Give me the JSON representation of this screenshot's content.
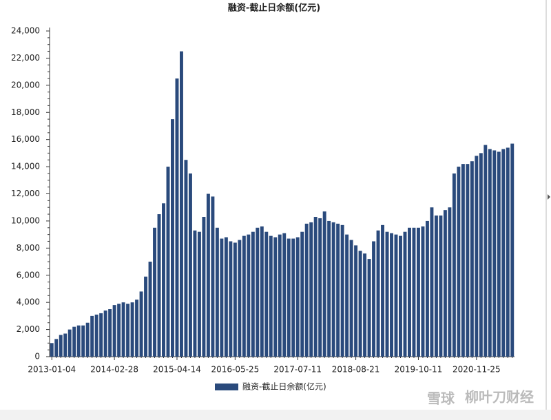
{
  "chart_data": {
    "type": "bar",
    "title": "融资-截止日余额(亿元)",
    "categories": [
      "2013-01-04",
      null,
      null,
      null,
      null,
      null,
      null,
      null,
      null,
      null,
      null,
      null,
      null,
      null,
      "2014-02-28",
      null,
      null,
      null,
      null,
      null,
      null,
      null,
      null,
      null,
      null,
      null,
      null,
      null,
      "2015-04-14",
      null,
      null,
      null,
      null,
      null,
      null,
      null,
      null,
      null,
      null,
      null,
      null,
      "2016-05-25",
      null,
      null,
      null,
      null,
      null,
      null,
      null,
      null,
      null,
      null,
      null,
      null,
      null,
      "2017-07-11",
      null,
      null,
      null,
      null,
      null,
      null,
      null,
      null,
      null,
      null,
      null,
      null,
      "2018-08-21",
      null,
      null,
      null,
      null,
      null,
      null,
      null,
      null,
      null,
      null,
      null,
      null,
      null,
      "2019-10-11",
      null,
      null,
      null,
      null,
      null,
      null,
      null,
      null,
      null,
      null,
      null,
      null,
      "2020-11-25",
      null,
      null,
      null,
      null,
      null,
      null,
      null,
      null
    ],
    "series": [
      {
        "name": "融资-截止日余额(亿元)",
        "color": "#2a4a7c",
        "values": [
          1000,
          1300,
          1600,
          1700,
          2000,
          2200,
          2300,
          2300,
          2500,
          3000,
          3100,
          3200,
          3400,
          3500,
          3800,
          3900,
          4000,
          3900,
          4000,
          4200,
          4800,
          5900,
          7000,
          9500,
          10500,
          11300,
          14000,
          17500,
          20500,
          22500,
          14500,
          13500,
          9300,
          9200,
          10300,
          12000,
          11800,
          9500,
          8700,
          8800,
          8500,
          8400,
          8600,
          8900,
          9000,
          9200,
          9500,
          9600,
          9200,
          8900,
          8800,
          9000,
          9100,
          8700,
          8700,
          8800,
          9200,
          9800,
          9900,
          10300,
          10200,
          10700,
          10000,
          9900,
          9800,
          9700,
          9000,
          8600,
          8200,
          7800,
          7600,
          7200,
          8500,
          9300,
          9700,
          9200,
          9100,
          9000,
          8900,
          9200,
          9500,
          9500,
          9500,
          9600,
          10000,
          11000,
          10400,
          10400,
          10800,
          11000,
          13500,
          14000,
          14200,
          14200,
          14400,
          14800,
          15000,
          15600,
          15300,
          15200,
          15100,
          15300,
          15400,
          15700
        ]
      }
    ],
    "ylim": [
      0,
      24000
    ],
    "yticks": [
      0,
      {
        "value": 2000,
        "label": "2,000"
      },
      {
        "value": 4000,
        "label": "4,000"
      },
      {
        "value": 6000,
        "label": "6,000"
      },
      {
        "value": 8000,
        "label": "8,000"
      },
      {
        "value": 10000,
        "label": "10,000"
      },
      {
        "value": 12000,
        "label": "12,000"
      },
      {
        "value": 14000,
        "label": "14,000"
      },
      {
        "value": 16000,
        "label": "16,000"
      },
      {
        "value": 18000,
        "label": "18,000"
      },
      {
        "value": 20000,
        "label": "20,000"
      },
      {
        "value": 22000,
        "label": "22,000"
      },
      {
        "value": 24000,
        "label": "24,000"
      }
    ],
    "legend": "bottom",
    "watermark": [
      "雪球",
      "柳叶刀财经"
    ]
  }
}
